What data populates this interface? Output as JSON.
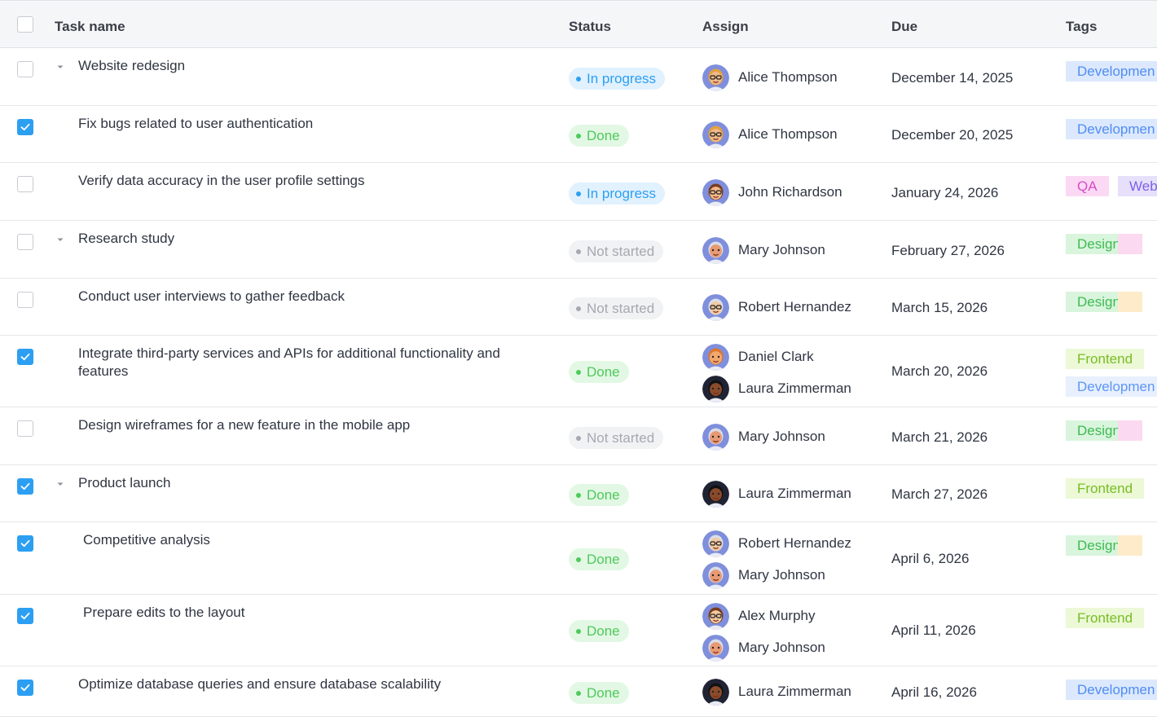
{
  "header": {
    "task_name": "Task name",
    "status": "Status",
    "assign": "Assign",
    "due": "Due",
    "tags": "Tags"
  },
  "rows": [
    {
      "task": "Website redesign",
      "checked": false,
      "expandable": true,
      "indent": 0,
      "status": "In progress",
      "status_kind": "progress",
      "assignees": [
        {
          "name": "Alice Thompson",
          "avatar": "alice-avatar"
        }
      ],
      "due": "December 14, 2025",
      "tags": [
        {
          "label": "Developmen",
          "kind": "development"
        }
      ]
    },
    {
      "task": "Fix bugs related to user authentication",
      "checked": true,
      "expandable": false,
      "indent": 0,
      "status": "Done",
      "status_kind": "done",
      "assignees": [
        {
          "name": "Alice Thompson",
          "avatar": "alice-avatar"
        }
      ],
      "due": "December 20, 2025",
      "tags": [
        {
          "label": "Developmen",
          "kind": "development"
        }
      ]
    },
    {
      "task": "Verify data accuracy in the user profile settings",
      "checked": false,
      "expandable": false,
      "indent": 0,
      "status": "In progress",
      "status_kind": "progress",
      "assignees": [
        {
          "name": "John Richardson",
          "avatar": "john-avatar"
        }
      ],
      "due": "January 24, 2026",
      "tags": [
        {
          "label": "QA",
          "kind": "qa"
        },
        {
          "label": "Web",
          "kind": "web"
        }
      ]
    },
    {
      "task": "Research study",
      "checked": false,
      "expandable": true,
      "indent": 0,
      "status": "Not started",
      "status_kind": "notstarted",
      "assignees": [
        {
          "name": "Mary Johnson",
          "avatar": "mary-avatar"
        }
      ],
      "due": "February 27, 2026",
      "tags": [
        {
          "label": "Design",
          "kind": "design"
        },
        {
          "label": "",
          "kind": "pink"
        }
      ]
    },
    {
      "task": "Conduct user interviews to gather feedback",
      "checked": false,
      "expandable": false,
      "indent": 0,
      "status": "Not started",
      "status_kind": "notstarted",
      "assignees": [
        {
          "name": "Robert Hernandez",
          "avatar": "robert-avatar"
        }
      ],
      "due": "March 15, 2026",
      "tags": [
        {
          "label": "Design",
          "kind": "design"
        },
        {
          "label": "",
          "kind": "orange"
        }
      ]
    },
    {
      "task": "Integrate third-party services and APIs for additional functionality and features",
      "checked": true,
      "expandable": false,
      "indent": 0,
      "status": "Done",
      "status_kind": "done",
      "assignees": [
        {
          "name": "Daniel Clark",
          "avatar": "daniel-avatar"
        },
        {
          "name": "Laura Zimmerman",
          "avatar": "laura-avatar"
        }
      ],
      "due": "March 20, 2026",
      "tags": [
        {
          "label": "Frontend",
          "kind": "frontend"
        },
        {
          "label": "Developmen",
          "kind": "development-light"
        }
      ]
    },
    {
      "task": "Design wireframes for a new feature in the mobile app",
      "checked": false,
      "expandable": false,
      "indent": 0,
      "status": "Not started",
      "status_kind": "notstarted",
      "assignees": [
        {
          "name": "Mary Johnson",
          "avatar": "mary-avatar"
        }
      ],
      "due": "March 21, 2026",
      "tags": [
        {
          "label": "Design",
          "kind": "design"
        },
        {
          "label": "",
          "kind": "pink"
        }
      ]
    },
    {
      "task": "Product launch",
      "checked": true,
      "expandable": true,
      "indent": 0,
      "status": "Done",
      "status_kind": "done",
      "assignees": [
        {
          "name": "Laura Zimmerman",
          "avatar": "laura-avatar"
        }
      ],
      "due": "March 27, 2026",
      "tags": [
        {
          "label": "Frontend",
          "kind": "frontend"
        }
      ]
    },
    {
      "task": "Competitive analysis",
      "checked": true,
      "expandable": false,
      "indent": 1,
      "status": "Done",
      "status_kind": "done",
      "assignees": [
        {
          "name": "Robert Hernandez",
          "avatar": "robert-avatar"
        },
        {
          "name": "Mary Johnson",
          "avatar": "mary-avatar"
        }
      ],
      "due": "April 6, 2026",
      "tags": [
        {
          "label": "Design",
          "kind": "design"
        },
        {
          "label": "",
          "kind": "orange"
        }
      ]
    },
    {
      "task": "Prepare edits to the layout",
      "checked": true,
      "expandable": false,
      "indent": 1,
      "status": "Done",
      "status_kind": "done",
      "assignees": [
        {
          "name": "Alex Murphy",
          "avatar": "alex-avatar"
        },
        {
          "name": "Mary Johnson",
          "avatar": "mary-avatar"
        }
      ],
      "due": "April 11, 2026",
      "tags": [
        {
          "label": "Frontend",
          "kind": "frontend"
        }
      ]
    },
    {
      "task": "Optimize database queries and ensure database scalability",
      "checked": true,
      "expandable": false,
      "indent": 0,
      "status": "Done",
      "status_kind": "done",
      "assignees": [
        {
          "name": "Laura Zimmerman",
          "avatar": "laura-avatar"
        }
      ],
      "due": "April 16, 2026",
      "tags": [
        {
          "label": "Developmen",
          "kind": "development"
        }
      ]
    }
  ],
  "colors": {
    "accent": "#2d9ff2",
    "done": "#4fc95c",
    "not_started": "#a4a9b1"
  }
}
